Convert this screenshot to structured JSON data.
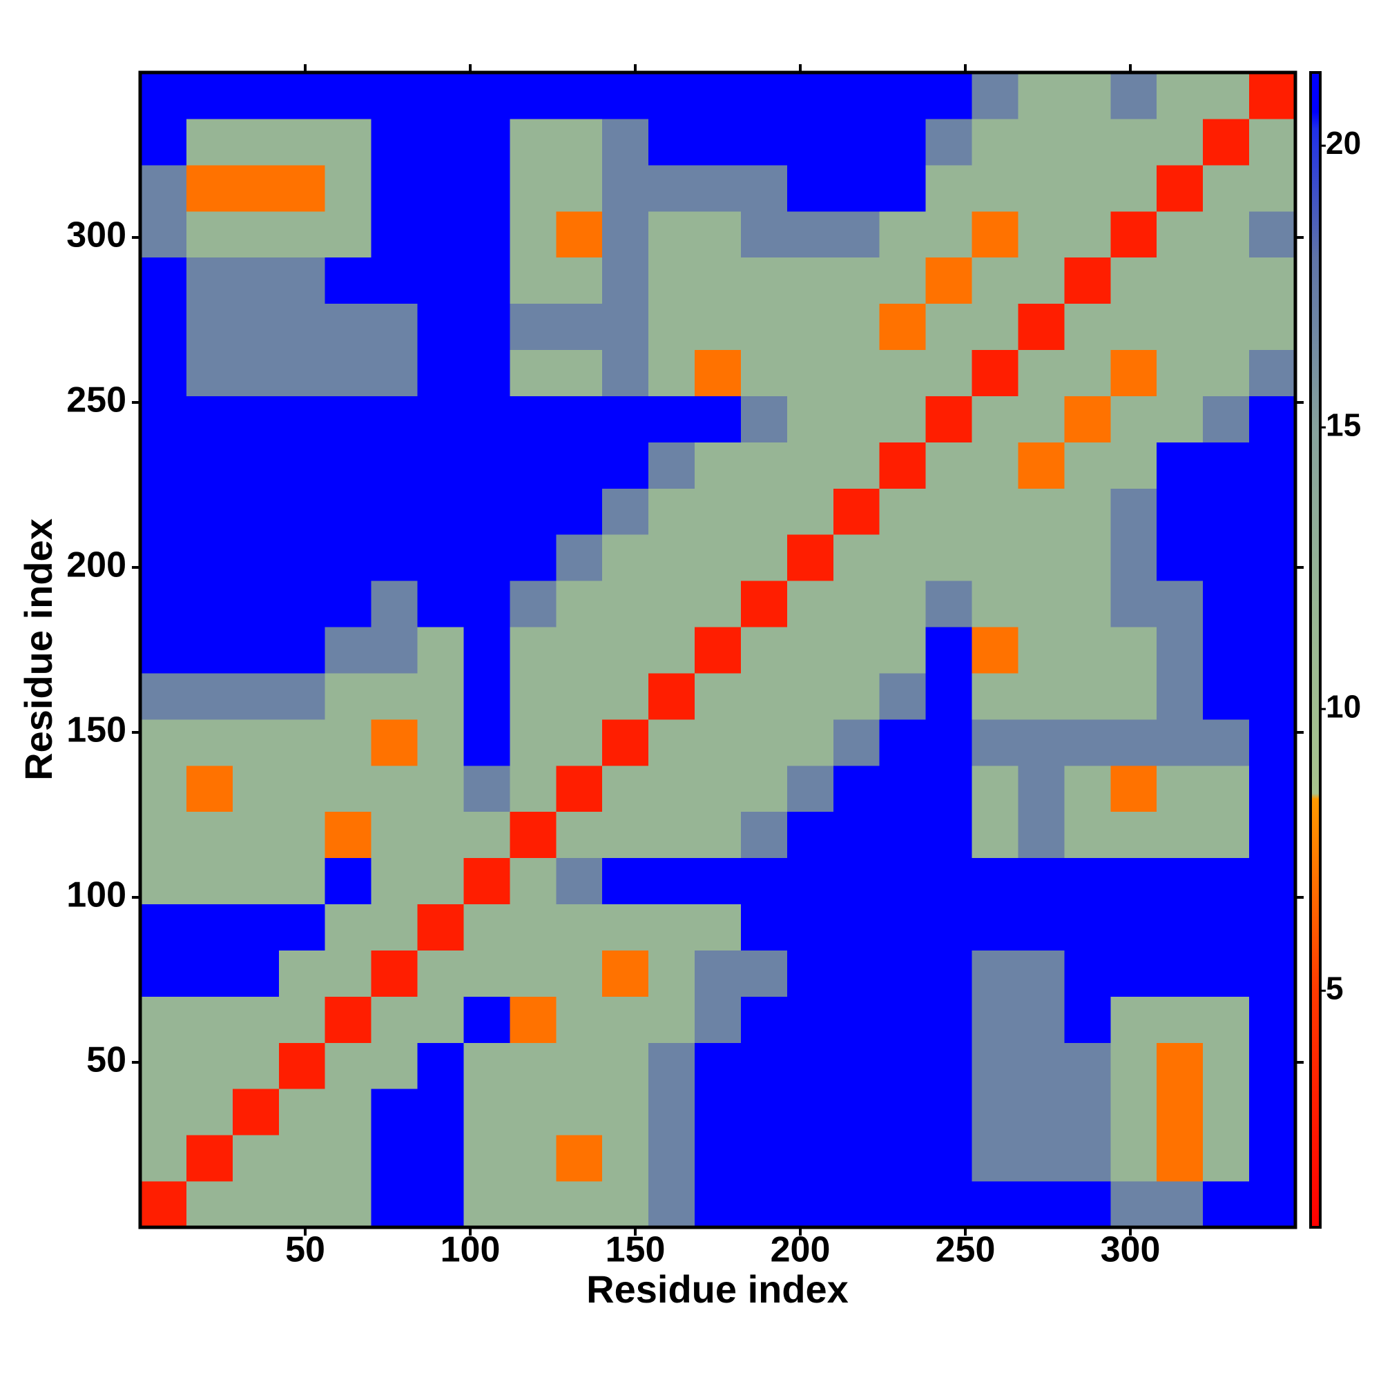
{
  "chart_data": {
    "type": "heatmap",
    "xlabel": "Residue index",
    "ylabel": "Residue index",
    "bins": [
      0,
      14,
      28,
      42,
      56,
      70,
      84,
      98,
      112,
      126,
      140,
      154,
      168,
      182,
      196,
      210,
      224,
      238,
      252,
      266,
      280,
      294,
      308,
      322,
      336,
      350
    ],
    "xlim": [
      0,
      350
    ],
    "ylim": [
      0,
      350
    ],
    "xticks": [
      50,
      100,
      150,
      200,
      250,
      300
    ],
    "yticks": [
      50,
      100,
      150,
      200,
      250,
      300
    ],
    "colorbar": {
      "lim": [
        0.8,
        21.3
      ],
      "ticks": [
        5,
        10,
        15,
        20
      ]
    },
    "colorscale": [
      [
        0.8,
        "#ff0000"
      ],
      [
        5,
        "#ff3a00"
      ],
      [
        8.4,
        "#ff9a00"
      ],
      [
        8.5,
        "#a8c48e"
      ],
      [
        12,
        "#97b595"
      ],
      [
        15,
        "#87a29e"
      ],
      [
        18,
        "#5f74a8"
      ],
      [
        20.3,
        "#2030e8"
      ],
      [
        20.6,
        "#0000ff"
      ]
    ],
    "values": [
      [
        3,
        12,
        12,
        12,
        12,
        21,
        21,
        12,
        12,
        12,
        12,
        17,
        21,
        21,
        21,
        21,
        21,
        21,
        21,
        21,
        21,
        17,
        17,
        21,
        21
      ],
      [
        12,
        3,
        12,
        12,
        12,
        21,
        21,
        12,
        12,
        7,
        12,
        17,
        21,
        21,
        21,
        21,
        21,
        21,
        17,
        17,
        17,
        12,
        7,
        12,
        21
      ],
      [
        12,
        12,
        3,
        12,
        12,
        21,
        21,
        12,
        12,
        12,
        12,
        17,
        21,
        21,
        21,
        21,
        21,
        21,
        17,
        17,
        17,
        12,
        7,
        12,
        21
      ],
      [
        12,
        12,
        12,
        3,
        12,
        12,
        21,
        12,
        12,
        12,
        12,
        17,
        21,
        21,
        21,
        21,
        21,
        21,
        17,
        17,
        17,
        12,
        7,
        12,
        21
      ],
      [
        12,
        12,
        12,
        12,
        3,
        12,
        12,
        21,
        7,
        12,
        12,
        12,
        17,
        21,
        21,
        21,
        21,
        21,
        17,
        17,
        21,
        12,
        12,
        12,
        21
      ],
      [
        21,
        21,
        21,
        12,
        12,
        3,
        12,
        12,
        12,
        12,
        7,
        12,
        17,
        17,
        21,
        21,
        21,
        21,
        17,
        17,
        21,
        21,
        21,
        21,
        21
      ],
      [
        21,
        21,
        21,
        21,
        12,
        12,
        3,
        12,
        12,
        12,
        12,
        12,
        12,
        21,
        21,
        21,
        21,
        21,
        21,
        21,
        21,
        21,
        21,
        21,
        21
      ],
      [
        12,
        12,
        12,
        12,
        21,
        12,
        12,
        3,
        12,
        17,
        21,
        21,
        21,
        21,
        21,
        21,
        21,
        21,
        21,
        21,
        21,
        21,
        21,
        21,
        21
      ],
      [
        12,
        12,
        12,
        12,
        7,
        12,
        12,
        12,
        3,
        12,
        12,
        12,
        12,
        17,
        21,
        21,
        21,
        21,
        12,
        17,
        12,
        12,
        12,
        12,
        21
      ],
      [
        12,
        7,
        12,
        12,
        12,
        12,
        12,
        17,
        12,
        3,
        12,
        12,
        12,
        12,
        17,
        21,
        21,
        21,
        12,
        17,
        12,
        7,
        12,
        12,
        21
      ],
      [
        12,
        12,
        12,
        12,
        12,
        7,
        12,
        21,
        12,
        12,
        3,
        12,
        12,
        12,
        12,
        17,
        21,
        21,
        17,
        17,
        17,
        17,
        17,
        17,
        21
      ],
      [
        17,
        17,
        17,
        17,
        12,
        12,
        12,
        21,
        12,
        12,
        12,
        3,
        12,
        12,
        12,
        12,
        17,
        21,
        12,
        12,
        12,
        12,
        17,
        21,
        21
      ],
      [
        21,
        21,
        21,
        21,
        17,
        17,
        12,
        21,
        12,
        12,
        12,
        12,
        3,
        12,
        12,
        12,
        12,
        21,
        7,
        12,
        12,
        12,
        17,
        21,
        21
      ],
      [
        21,
        21,
        21,
        21,
        21,
        17,
        21,
        21,
        17,
        12,
        12,
        12,
        12,
        3,
        12,
        12,
        12,
        17,
        12,
        12,
        12,
        17,
        17,
        21,
        21
      ],
      [
        21,
        21,
        21,
        21,
        21,
        21,
        21,
        21,
        21,
        17,
        12,
        12,
        12,
        12,
        3,
        12,
        12,
        12,
        12,
        12,
        12,
        17,
        21,
        21,
        21
      ],
      [
        21,
        21,
        21,
        21,
        21,
        21,
        21,
        21,
        21,
        21,
        17,
        12,
        12,
        12,
        12,
        3,
        12,
        12,
        12,
        12,
        12,
        17,
        21,
        21,
        21
      ],
      [
        21,
        21,
        21,
        21,
        21,
        21,
        21,
        21,
        21,
        21,
        21,
        17,
        12,
        12,
        12,
        12,
        3,
        12,
        12,
        7,
        12,
        12,
        21,
        21,
        21
      ],
      [
        21,
        21,
        21,
        21,
        21,
        21,
        21,
        21,
        21,
        21,
        21,
        21,
        21,
        17,
        12,
        12,
        12,
        3,
        12,
        12,
        7,
        12,
        12,
        17,
        21
      ],
      [
        21,
        17,
        17,
        17,
        17,
        17,
        21,
        21,
        12,
        12,
        17,
        12,
        7,
        12,
        12,
        12,
        12,
        12,
        3,
        12,
        12,
        7,
        12,
        12,
        17
      ],
      [
        21,
        17,
        17,
        17,
        17,
        17,
        21,
        21,
        17,
        17,
        17,
        12,
        12,
        12,
        12,
        12,
        7,
        12,
        12,
        3,
        12,
        12,
        12,
        12,
        12
      ],
      [
        21,
        17,
        17,
        17,
        21,
        21,
        21,
        21,
        12,
        12,
        17,
        12,
        12,
        12,
        12,
        12,
        12,
        7,
        12,
        12,
        3,
        12,
        12,
        12,
        12
      ],
      [
        17,
        12,
        12,
        12,
        12,
        21,
        21,
        21,
        12,
        7,
        17,
        12,
        12,
        17,
        17,
        17,
        12,
        12,
        7,
        12,
        12,
        3,
        12,
        12,
        17
      ],
      [
        17,
        7,
        7,
        7,
        12,
        21,
        21,
        21,
        12,
        12,
        17,
        17,
        17,
        17,
        21,
        21,
        21,
        12,
        12,
        12,
        12,
        12,
        3,
        12,
        12
      ],
      [
        21,
        12,
        12,
        12,
        12,
        21,
        21,
        21,
        12,
        12,
        17,
        21,
        21,
        21,
        21,
        21,
        21,
        17,
        12,
        12,
        12,
        12,
        12,
        3,
        12
      ],
      [
        21,
        21,
        21,
        21,
        21,
        21,
        21,
        21,
        21,
        21,
        21,
        21,
        21,
        21,
        21,
        21,
        21,
        21,
        17,
        12,
        12,
        17,
        12,
        12,
        3
      ]
    ]
  }
}
